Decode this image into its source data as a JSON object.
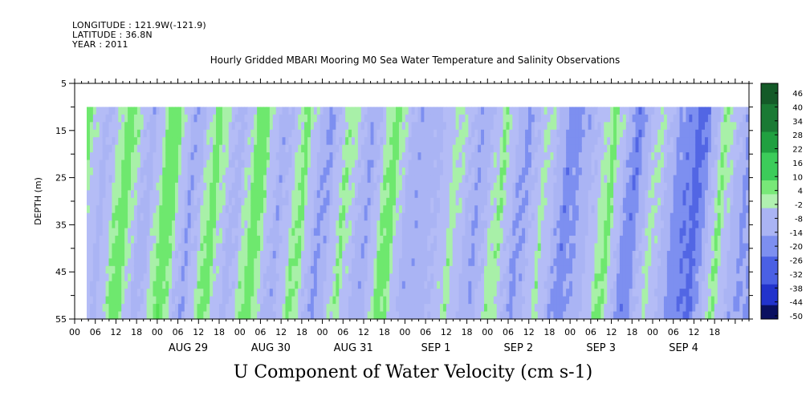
{
  "header": {
    "longitude": "LONGITUDE : 121.9W(-121.9)",
    "latitude": "LATITUDE : 36.8N",
    "year": "YEAR : 2011"
  },
  "chart_data": {
    "type": "heatmap",
    "title": "Hourly Gridded MBARI Mooring M0 Sea Water Temperature and Salinity Observations",
    "bottom_title": "U Component of Water Velocity (cm s-1)",
    "ylabel": "DEPTH (m)",
    "ylim": [
      5,
      55
    ],
    "y_inverted": true,
    "y_ticks": [
      5,
      15,
      25,
      35,
      45,
      55
    ],
    "data_depth_range": [
      10,
      55
    ],
    "x_hour_ticks": [
      "00",
      "06",
      "12",
      "18",
      "00",
      "06",
      "12",
      "18",
      "00",
      "06",
      "12",
      "18",
      "00",
      "06",
      "12",
      "18",
      "00",
      "06",
      "12",
      "18",
      "00",
      "06",
      "12",
      "18",
      "00",
      "06",
      "12",
      "18",
      "00",
      "06",
      "12",
      "18"
    ],
    "x_day_labels": [
      "AUG 29",
      "AUG 30",
      "AUG 31",
      "SEP  1",
      "SEP  2",
      "SEP  3",
      "SEP  4"
    ],
    "x_range_hours": [
      0,
      196
    ],
    "data_start_hour": 3.5,
    "colorbar": {
      "labels": [
        "46",
        "40",
        "34",
        "28",
        "22",
        "16",
        "10",
        "4",
        "-2",
        "-8",
        "-14",
        "-20",
        "-26",
        "-32",
        "-38",
        "-44",
        "-50"
      ],
      "min": -50,
      "max": 50
    },
    "colors": {
      "positive_light": "#a8f0a8",
      "positive": "#55e055",
      "positive_dark": "#1a9a3a",
      "negative_light": "#aab4f4",
      "negative": "#7d8ff0",
      "negative_dark": "#2233cc"
    },
    "series": [
      {
        "approx_u_at_depth_cm_s": "alternating bands, roughly -20 to +16 cm/s",
        "values": [
          8,
          -6,
          10,
          -8,
          12,
          -10,
          9,
          -7,
          11,
          -9,
          8,
          -12,
          6,
          -10,
          10,
          -8,
          -6,
          4,
          -10,
          6,
          -12,
          4,
          -14,
          -6,
          8,
          -16,
          4,
          -12,
          -18,
          6,
          -10
        ]
      }
    ]
  }
}
